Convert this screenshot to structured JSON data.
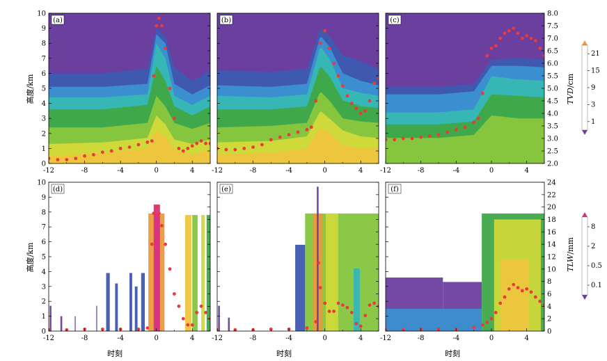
{
  "colors": {
    "fill_levels": [
      "#6b3fa0",
      "#3f58b0",
      "#3b8fd0",
      "#37b6b6",
      "#3fa84a",
      "#86c53e",
      "#cfd93a",
      "#eec63d",
      "#eb9a3d",
      "#e4533b",
      "#d82e86"
    ],
    "point_color": "#ea3b3b",
    "cb1_colors": [
      "#6b3fa0",
      "#3f58b0",
      "#3b8fd0",
      "#37b6b6",
      "#3fa84a",
      "#86c53e",
      "#cfd93a",
      "#eec63d",
      "#eb9a3d"
    ],
    "cb2_colors": [
      "#6b3fa0",
      "#3f58b0",
      "#3b8fd0",
      "#37b6b6",
      "#3fa84a",
      "#86c53e",
      "#cfd93a",
      "#eec63d",
      "#eb9a3d",
      "#e4533b",
      "#d82e86"
    ]
  },
  "axes": {
    "y_left_label": "高度/km",
    "x_label": "时刻",
    "x_ticks": [
      "-12",
      "-8",
      "-4",
      "0",
      "4"
    ],
    "y_left_ticks": [
      "0",
      "1",
      "2",
      "3",
      "4",
      "5",
      "6",
      "7",
      "8",
      "9",
      "10"
    ],
    "top_right_ticks": [
      "2.0",
      "2.5",
      "3.0",
      "3.5",
      "4.0",
      "4.5",
      "5.0",
      "5.5",
      "6.0",
      "6.5",
      "7.0",
      "7.5",
      "8.0"
    ],
    "bottom_right_ticks": [
      "0",
      "2",
      "4",
      "6",
      "8",
      "10",
      "12",
      "14",
      "16",
      "18",
      "20",
      "22",
      "24"
    ]
  },
  "colorbars": {
    "top": {
      "label_prefix": "TVD",
      "label_suffix": "/cm",
      "ticks": [
        "1",
        "3",
        "9",
        "15",
        "21"
      ]
    },
    "bottom": {
      "label_prefix": "TLW",
      "label_suffix": "/mm",
      "ticks": [
        "0.1",
        "0.5",
        "2",
        "8"
      ]
    }
  },
  "panels": [
    {
      "label": "(a)"
    },
    {
      "label": "(b)"
    },
    {
      "label": "(c)"
    },
    {
      "label": "(d)"
    },
    {
      "label": "(e)"
    },
    {
      "label": "(f)"
    }
  ],
  "chart_data": [
    {
      "type": "heatmap",
      "title": "(a)",
      "xlabel": "时刻",
      "ylabel": "高度/km",
      "y2label": "TVD/cm",
      "xlim": [
        -12,
        6
      ],
      "ylim": [
        0,
        10
      ],
      "y2lim": [
        2.0,
        8.0
      ],
      "contour_bands_km": [
        {
          "t": [
            -12,
            -6,
            -1,
            0,
            1,
            2,
            4,
            6
          ],
          "top": [
            6.0,
            6.0,
            6.3,
            9.0,
            8.5,
            6.4,
            5.5,
            6.2
          ]
        },
        {
          "t": [
            -12,
            -6,
            -1,
            0,
            1,
            2,
            4,
            6
          ],
          "top": [
            5.1,
            5.1,
            5.3,
            8.6,
            8.0,
            5.3,
            4.6,
            5.2
          ]
        },
        {
          "t": [
            -12,
            -6,
            -1,
            0,
            1,
            2,
            4,
            6
          ],
          "top": [
            4.4,
            4.4,
            4.6,
            8.0,
            7.0,
            4.5,
            3.9,
            4.5
          ]
        },
        {
          "t": [
            -12,
            -6,
            -1,
            0,
            1,
            2,
            4,
            6
          ],
          "top": [
            3.6,
            3.6,
            3.9,
            6.5,
            5.5,
            3.8,
            3.2,
            3.8
          ]
        },
        {
          "t": [
            -12,
            -6,
            -1,
            0,
            1,
            2,
            4,
            6
          ],
          "top": [
            2.4,
            2.4,
            2.7,
            4.5,
            3.8,
            2.7,
            2.3,
            2.7
          ]
        },
        {
          "t": [
            -12,
            -6,
            -1,
            0,
            1,
            2,
            4,
            6
          ],
          "top": [
            1.3,
            1.4,
            1.7,
            3.2,
            2.6,
            1.6,
            1.3,
            1.6
          ]
        },
        {
          "t": [
            -12,
            -6,
            -1,
            0,
            1,
            2,
            4,
            6
          ],
          "top": [
            0.5,
            0.7,
            1.0,
            2.2,
            1.8,
            0.9,
            0.6,
            0.9
          ]
        }
      ],
      "tvd_series": {
        "t": [
          -12,
          -11,
          -10,
          -9,
          -8,
          -7,
          -6,
          -5,
          -4,
          -3,
          -2,
          -1,
          -0.5,
          -0.3,
          0,
          0.3,
          0.6,
          1,
          1.5,
          2,
          2.5,
          3,
          3.5,
          4,
          4.5,
          5,
          5.5,
          6
        ],
        "v": [
          2.2,
          2.15,
          2.15,
          2.2,
          2.3,
          2.35,
          2.45,
          2.5,
          2.6,
          2.65,
          2.75,
          2.85,
          2.9,
          5.5,
          7.5,
          7.8,
          7.5,
          6.6,
          5.0,
          3.8,
          2.6,
          2.5,
          2.6,
          2.7,
          2.8,
          2.9,
          2.8,
          2.8
        ]
      }
    },
    {
      "type": "heatmap",
      "title": "(b)",
      "xlabel": "时刻",
      "ylabel": "高度/km",
      "y2label": "TVD/cm",
      "xlim": [
        -12,
        6
      ],
      "ylim": [
        0,
        10
      ],
      "y2lim": [
        2.0,
        8.0
      ],
      "contour_bands_km": [
        {
          "t": [
            -12,
            -6,
            -2,
            -0.5,
            0.5,
            2,
            4,
            6
          ],
          "top": [
            6.2,
            6.1,
            6.3,
            9.0,
            8.5,
            7.2,
            6.8,
            6.3
          ]
        },
        {
          "t": [
            -12,
            -6,
            -2,
            -0.5,
            0.5,
            2,
            4,
            6
          ],
          "top": [
            5.2,
            5.1,
            5.3,
            8.5,
            7.8,
            6.0,
            5.5,
            5.2
          ]
        },
        {
          "t": [
            -12,
            -6,
            -2,
            -0.5,
            0.5,
            2,
            4,
            6
          ],
          "top": [
            4.5,
            4.4,
            4.6,
            7.8,
            7.0,
            5.0,
            4.7,
            4.5
          ]
        },
        {
          "t": [
            -12,
            -6,
            -2,
            -0.5,
            0.5,
            2,
            4,
            6
          ],
          "top": [
            3.6,
            3.6,
            3.8,
            6.5,
            5.8,
            4.2,
            3.8,
            3.7
          ]
        },
        {
          "t": [
            -12,
            -6,
            -2,
            -0.5,
            0.5,
            2,
            4,
            6
          ],
          "top": [
            2.4,
            2.5,
            2.7,
            4.8,
            4.2,
            3.0,
            2.8,
            2.7
          ]
        },
        {
          "t": [
            -12,
            -6,
            -2,
            -0.5,
            0.5,
            2,
            4,
            6
          ],
          "top": [
            1.4,
            1.5,
            1.8,
            3.5,
            3.0,
            2.2,
            1.8,
            1.7
          ]
        },
        {
          "t": [
            -12,
            -6,
            -2,
            -0.5,
            0.5,
            2,
            4,
            6
          ],
          "top": [
            0.6,
            0.7,
            1.0,
            2.4,
            2.0,
            1.2,
            1.0,
            1.0
          ]
        }
      ],
      "tvd_series": {
        "t": [
          -12,
          -11,
          -10,
          -9,
          -8,
          -7,
          -6,
          -5,
          -4,
          -3,
          -2,
          -1.5,
          -1,
          -0.5,
          0,
          0.5,
          1,
          1.5,
          2,
          2.5,
          3,
          3.5,
          4,
          4.5,
          5,
          5.5,
          6
        ],
        "v": [
          2.6,
          2.55,
          2.55,
          2.6,
          2.65,
          2.75,
          2.95,
          3.05,
          3.15,
          3.25,
          3.35,
          3.45,
          4.5,
          6.8,
          7.3,
          6.6,
          6.0,
          5.5,
          5.1,
          4.7,
          4.4,
          4.2,
          4.0,
          4.1,
          4.5,
          5.2,
          5.4
        ]
      }
    },
    {
      "type": "heatmap",
      "title": "(c)",
      "xlabel": "时刻",
      "ylabel": "高度/km",
      "y2label": "TVD/cm",
      "xlim": [
        -12,
        6
      ],
      "ylim": [
        0,
        10
      ],
      "y2lim": [
        2.0,
        8.0
      ],
      "contour_bands_km": [
        {
          "t": [
            -12,
            -6,
            -2,
            0,
            3,
            6
          ],
          "top": [
            5.1,
            5.1,
            5.3,
            6.9,
            7.0,
            6.9
          ]
        },
        {
          "t": [
            -12,
            -6,
            -2,
            0,
            3,
            6
          ],
          "top": [
            4.6,
            4.6,
            4.8,
            6.5,
            6.5,
            6.4
          ]
        },
        {
          "t": [
            -12,
            -6,
            -2,
            0,
            3,
            6
          ],
          "top": [
            3.4,
            3.4,
            3.6,
            5.8,
            5.6,
            5.5
          ]
        },
        {
          "t": [
            -12,
            -6,
            -2,
            0,
            3,
            6
          ],
          "top": [
            2.6,
            2.6,
            2.8,
            4.6,
            4.5,
            4.4
          ]
        },
        {
          "t": [
            -12,
            -6,
            -2,
            0,
            3,
            6
          ],
          "top": [
            1.7,
            1.7,
            1.9,
            3.2,
            3.0,
            3.0
          ]
        }
      ],
      "tvd_series": {
        "t": [
          -12,
          -11,
          -10,
          -9,
          -8,
          -7,
          -6,
          -5,
          -4,
          -3,
          -2,
          -1.5,
          -1,
          -0.5,
          0,
          0.5,
          1,
          1.5,
          2,
          2.5,
          3,
          3.5,
          4,
          4.5,
          5,
          5.5,
          6
        ],
        "v": [
          2.95,
          2.95,
          3.0,
          3.0,
          3.05,
          3.1,
          3.15,
          3.25,
          3.35,
          3.45,
          3.65,
          3.8,
          4.8,
          6.3,
          6.6,
          6.7,
          7.0,
          7.2,
          7.3,
          7.4,
          7.2,
          7.0,
          7.1,
          7.0,
          6.9,
          6.6,
          6.3
        ]
      }
    },
    {
      "type": "heatmap",
      "title": "(d)",
      "xlabel": "时刻",
      "ylabel": "高度/km",
      "y2label": "TLW/mm",
      "xlim": [
        -12,
        6
      ],
      "ylim": [
        0,
        10
      ],
      "y2lim": [
        0,
        24
      ],
      "cloud_columns": [
        {
          "t0": -0.9,
          "t1": 0.9,
          "top": 7.9,
          "level": 8
        },
        {
          "t0": -0.3,
          "t1": 0.4,
          "top": 8.5,
          "level": 10
        },
        {
          "t0": 3.2,
          "t1": 3.9,
          "top": 7.8,
          "level": 7
        },
        {
          "t0": 4.0,
          "t1": 4.6,
          "top": 7.8,
          "level": 5
        },
        {
          "t0": 5.0,
          "t1": 5.4,
          "top": 7.8,
          "level": 6
        },
        {
          "t0": 5.6,
          "t1": 6.0,
          "top": 7.8,
          "level": 4
        },
        {
          "t0": -5.6,
          "t1": -5.2,
          "top": 3.9,
          "level": 1
        },
        {
          "t0": -4.6,
          "t1": -4.3,
          "top": 3.2,
          "level": 1
        },
        {
          "t0": -3.0,
          "t1": -2.7,
          "top": 3.9,
          "level": 1
        },
        {
          "t0": -2.4,
          "t1": -2.1,
          "top": 3.0,
          "level": 1
        },
        {
          "t0": -1.7,
          "t1": -1.3,
          "top": 3.9,
          "level": 1
        },
        {
          "t0": -11.9,
          "t1": -11.7,
          "top": 1.7,
          "level": 0
        },
        {
          "t0": -10.7,
          "t1": -10.5,
          "top": 1.0,
          "level": 0
        },
        {
          "t0": -9.1,
          "t1": -9.0,
          "top": 1.0,
          "level": 0
        },
        {
          "t0": -6.7,
          "t1": -6.6,
          "top": 1.7,
          "level": 0
        }
      ],
      "tlw_series": {
        "t": [
          -12,
          -10,
          -8,
          -6,
          -4,
          -2,
          -1,
          -0.5,
          -0.3,
          0,
          0.3,
          0.6,
          1,
          1.5,
          2,
          2.5,
          3,
          3.5,
          4,
          4.5,
          5,
          5.5,
          6
        ],
        "v": [
          0.2,
          0.2,
          0.3,
          0.3,
          0.3,
          0.3,
          0.5,
          14,
          19,
          20,
          19,
          17,
          14,
          10,
          6,
          4,
          2,
          1,
          1,
          3,
          4,
          3,
          2
        ]
      }
    },
    {
      "type": "heatmap",
      "title": "(e)",
      "xlabel": "时刻",
      "ylabel": "高度/km",
      "y2label": "TLW/mm",
      "xlim": [
        -12,
        6
      ],
      "ylim": [
        0,
        10
      ],
      "y2lim": [
        0,
        24
      ],
      "cloud_columns": [
        {
          "t0": -2.2,
          "t1": 6.0,
          "top": 7.9,
          "level": 5
        },
        {
          "t0": -1.3,
          "t1": -0.3,
          "top": 7.9,
          "level": 8
        },
        {
          "t0": 0.1,
          "t1": 1.5,
          "top": 7.9,
          "level": 6
        },
        {
          "t0": 3.2,
          "t1": 3.9,
          "top": 4.2,
          "level": 3
        },
        {
          "t0": -3.3,
          "t1": -2.2,
          "top": 5.8,
          "level": 1
        },
        {
          "t0": -0.9,
          "t1": -0.7,
          "top": 9.7,
          "level": 0
        },
        {
          "t0": -11.9,
          "t1": -11.7,
          "top": 1.7,
          "level": 0
        },
        {
          "t0": -10.8,
          "t1": -10.6,
          "top": 0.9,
          "level": 0
        }
      ],
      "tlw_series": {
        "t": [
          -12,
          -10,
          -8,
          -6,
          -4,
          -2,
          -1,
          -0.7,
          -0.5,
          0,
          0.5,
          1,
          1.5,
          2,
          2.5,
          3,
          3.5,
          4,
          4.5,
          5,
          5.5,
          6
        ],
        "v": [
          0.2,
          0.2,
          0.2,
          0.3,
          0.3,
          0.5,
          1.5,
          11,
          7,
          4.5,
          3.2,
          3.2,
          4.5,
          4.2,
          3.8,
          3.0,
          1.2,
          0.8,
          2.5,
          4.2,
          4.5,
          4.0
        ]
      }
    },
    {
      "type": "heatmap",
      "title": "(f)",
      "xlabel": "时刻",
      "ylabel": "高度/km",
      "y2label": "TLW/mm",
      "xlim": [
        -12,
        6
      ],
      "ylim": [
        0,
        10
      ],
      "y2lim": [
        0,
        24
      ],
      "cloud_columns": [
        {
          "t0": -1.1,
          "t1": 6.0,
          "top": 7.9,
          "level": 4
        },
        {
          "t0": 0.3,
          "t1": 5.6,
          "top": 7.5,
          "level": 6
        },
        {
          "t0": 1.0,
          "t1": 4.2,
          "top": 4.8,
          "level": 7
        },
        {
          "t0": -12.0,
          "t1": -5.5,
          "top": 3.6,
          "level": 0
        },
        {
          "t0": -5.5,
          "t1": -1.1,
          "top": 3.3,
          "level": 0
        },
        {
          "t0": -12.0,
          "t1": -1.1,
          "top": 1.5,
          "level": 2
        }
      ],
      "tlw_series": {
        "t": [
          -12,
          -10,
          -8,
          -6,
          -4,
          -2,
          -1,
          -0.5,
          0,
          0.5,
          1,
          1.5,
          2,
          2.5,
          3,
          3.5,
          4,
          4.5,
          5,
          5.5,
          6
        ],
        "v": [
          0.2,
          0.2,
          0.3,
          0.3,
          0.3,
          0.6,
          1.0,
          1.4,
          2.0,
          3.0,
          4.5,
          5.5,
          6.8,
          7.5,
          7.0,
          6.5,
          6.8,
          6.3,
          5.5,
          4.8,
          4.2
        ]
      }
    }
  ]
}
